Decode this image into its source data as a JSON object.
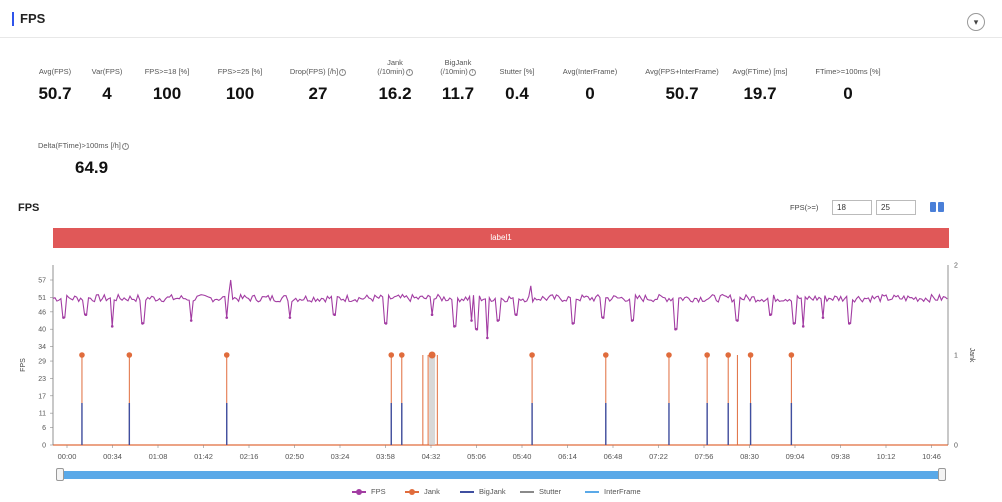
{
  "header": {
    "title": "FPS",
    "toggle_icon": "chevron-down-icon"
  },
  "metrics": [
    {
      "label1": "",
      "label2": "Avg(FPS)",
      "value": "50.7",
      "info": false
    },
    {
      "label1": "",
      "label2": "Var(FPS)",
      "value": "4",
      "info": false
    },
    {
      "label1": "",
      "label2": "FPS>=18 [%]",
      "value": "100",
      "info": false
    },
    {
      "label1": "",
      "label2": "FPS>=25 [%]",
      "value": "100",
      "info": false
    },
    {
      "label1": "",
      "label2": "Drop(FPS) [/h]",
      "value": "27",
      "info": true
    },
    {
      "label1": "Jank",
      "label2": "(/10min)",
      "value": "16.2",
      "info": true
    },
    {
      "label1": "BigJank",
      "label2": "(/10min)",
      "value": "11.7",
      "info": true
    },
    {
      "label1": "",
      "label2": "Stutter [%]",
      "value": "0.4",
      "info": false
    },
    {
      "label1": "",
      "label2": "Avg(InterFrame)",
      "value": "0",
      "info": false
    },
    {
      "label1": "",
      "label2": "Avg(FPS+InterFrame)",
      "value": "50.7",
      "info": false
    },
    {
      "label1": "",
      "label2": "Avg(FTime) [ms]",
      "value": "19.7",
      "info": false
    },
    {
      "label1": "",
      "label2": "FTime>=100ms [%]",
      "value": "0",
      "info": false
    },
    {
      "label1": "",
      "label2": "Delta(FTime)>100ms [/h]",
      "value": "64.9",
      "info": true
    }
  ],
  "chart": {
    "title": "FPS",
    "filter_label": "FPS(>=)",
    "filter_value_1": "18",
    "filter_value_2": "25",
    "banner_label": "label1",
    "y_left_label": "FPS",
    "y_right_label": "Jank",
    "y_left_ticks": [
      "0",
      "6",
      "11",
      "17",
      "23",
      "29",
      "34",
      "40",
      "46",
      "51",
      "57"
    ],
    "y_right_ticks": [
      "0",
      "1",
      "2"
    ],
    "x_ticks": [
      "00:00",
      "00:34",
      "01:08",
      "01:42",
      "02:16",
      "02:50",
      "03:24",
      "03:58",
      "04:32",
      "05:06",
      "05:40",
      "06:14",
      "06:48",
      "07:22",
      "07:56",
      "08:30",
      "09:04",
      "09:38",
      "10:12",
      "10:46"
    ]
  },
  "chart_data": {
    "type": "line",
    "x_range_seconds": [
      0,
      680
    ],
    "y_left_range": [
      0,
      57
    ],
    "y_right_range": [
      0,
      2
    ],
    "fps_baseline": 50.7,
    "fps_dips": [
      {
        "t": 8,
        "fps": 44
      },
      {
        "t": 25,
        "fps": 45
      },
      {
        "t": 45,
        "fps": 41
      },
      {
        "t": 68,
        "fps": 42
      },
      {
        "t": 105,
        "fps": 43
      },
      {
        "t": 132,
        "fps": 44
      },
      {
        "t": 180,
        "fps": 44
      },
      {
        "t": 214,
        "fps": 45
      },
      {
        "t": 253,
        "fps": 42
      },
      {
        "t": 288,
        "fps": 45
      },
      {
        "t": 305,
        "fps": 41
      },
      {
        "t": 318,
        "fps": 43
      },
      {
        "t": 322,
        "fps": 40
      },
      {
        "t": 330,
        "fps": 37
      },
      {
        "t": 338,
        "fps": 43
      },
      {
        "t": 352,
        "fps": 45
      },
      {
        "t": 395,
        "fps": 42
      },
      {
        "t": 418,
        "fps": 44
      },
      {
        "t": 440,
        "fps": 43
      },
      {
        "t": 473,
        "fps": 40
      },
      {
        "t": 520,
        "fps": 43
      },
      {
        "t": 545,
        "fps": 45
      },
      {
        "t": 563,
        "fps": 42
      },
      {
        "t": 570,
        "fps": 41
      },
      {
        "t": 585,
        "fps": 44
      },
      {
        "t": 605,
        "fps": 42
      }
    ],
    "fps_peaks": [
      {
        "t": 135,
        "fps": 57
      },
      {
        "t": 363,
        "fps": 55
      }
    ],
    "jank_events": [
      {
        "t": 22,
        "jank": 1,
        "bigjank": true
      },
      {
        "t": 58,
        "jank": 1,
        "bigjank": true
      },
      {
        "t": 132,
        "jank": 1,
        "bigjank": true
      },
      {
        "t": 257,
        "jank": 1,
        "bigjank": true
      },
      {
        "t": 265,
        "jank": 1,
        "bigjank": true
      },
      {
        "t": 281,
        "jank": 1,
        "bigjank": false
      },
      {
        "t": 285,
        "jank": 1,
        "bigjank": false
      },
      {
        "t": 292,
        "jank": 1,
        "bigjank": false
      },
      {
        "t": 364,
        "jank": 1,
        "bigjank": true
      },
      {
        "t": 420,
        "jank": 1,
        "bigjank": true
      },
      {
        "t": 468,
        "jank": 1,
        "bigjank": true
      },
      {
        "t": 497,
        "jank": 1,
        "bigjank": true
      },
      {
        "t": 513,
        "jank": 1,
        "bigjank": true
      },
      {
        "t": 520,
        "jank": 1,
        "bigjank": false
      },
      {
        "t": 530,
        "jank": 1,
        "bigjank": true
      },
      {
        "t": 561,
        "jank": 1,
        "bigjank": true
      }
    ],
    "stutter_events": [
      {
        "t": 288,
        "value": 1
      }
    ]
  },
  "legend": [
    {
      "name": "FPS",
      "color": "#a23ca2",
      "dot": true
    },
    {
      "name": "Jank",
      "color": "#e06c3c",
      "dot": true
    },
    {
      "name": "BigJank",
      "color": "#3f4fa0",
      "dot": false
    },
    {
      "name": "Stutter",
      "color": "#8a8a8a",
      "dot": false
    },
    {
      "name": "InterFrame",
      "color": "#5aa9e8",
      "dot": false
    }
  ],
  "colors": {
    "fps": "#a23ca2",
    "jank": "#e06c3c",
    "bigjank": "#3f4fa0",
    "stutter": "#a0a0a0",
    "accent": "#2f54eb",
    "banner": "#e05858",
    "scroll": "#5aa9e8"
  }
}
